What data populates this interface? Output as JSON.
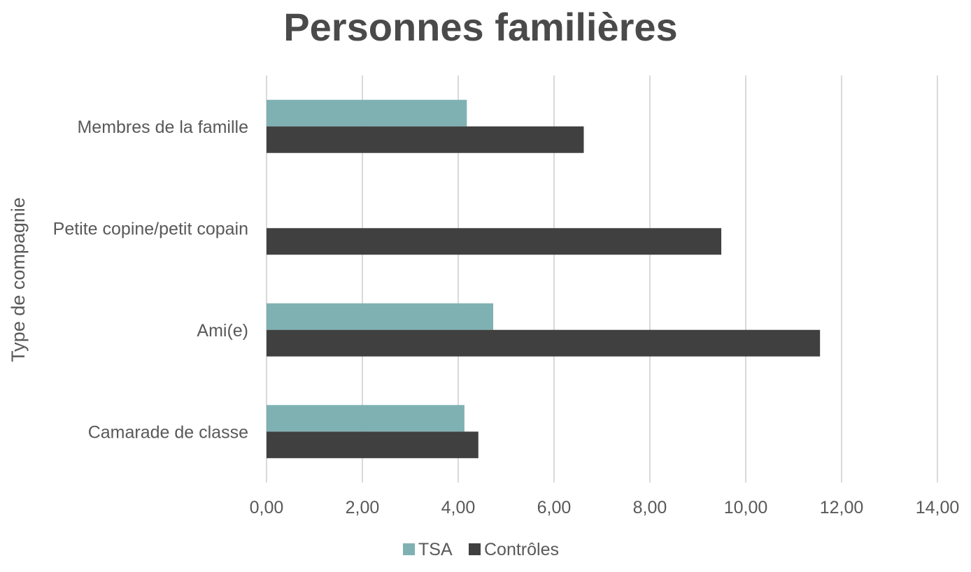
{
  "chart_data": {
    "type": "bar",
    "orientation": "horizontal",
    "title": "Personnes familières",
    "ylabel": "Type de compagnie",
    "xlabel": "",
    "categories": [
      "Membres de la famille",
      "Petite copine/petit copain",
      "Ami(e)",
      "Camarade de classe"
    ],
    "series": [
      {
        "name": "TSA",
        "color": "#7fb1b3",
        "values": [
          4.18,
          null,
          4.73,
          4.13
        ]
      },
      {
        "name": "Contrôles",
        "color": "#404040",
        "values": [
          6.62,
          9.49,
          11.55,
          4.42
        ]
      }
    ],
    "xlim": [
      0,
      14
    ],
    "xticks": [
      0,
      2,
      4,
      6,
      8,
      10,
      12,
      14
    ],
    "xtick_labels": [
      "0,00",
      "2,00",
      "4,00",
      "6,00",
      "8,00",
      "10,00",
      "12,00",
      "14,00"
    ],
    "grid": true,
    "legend_position": "bottom"
  }
}
